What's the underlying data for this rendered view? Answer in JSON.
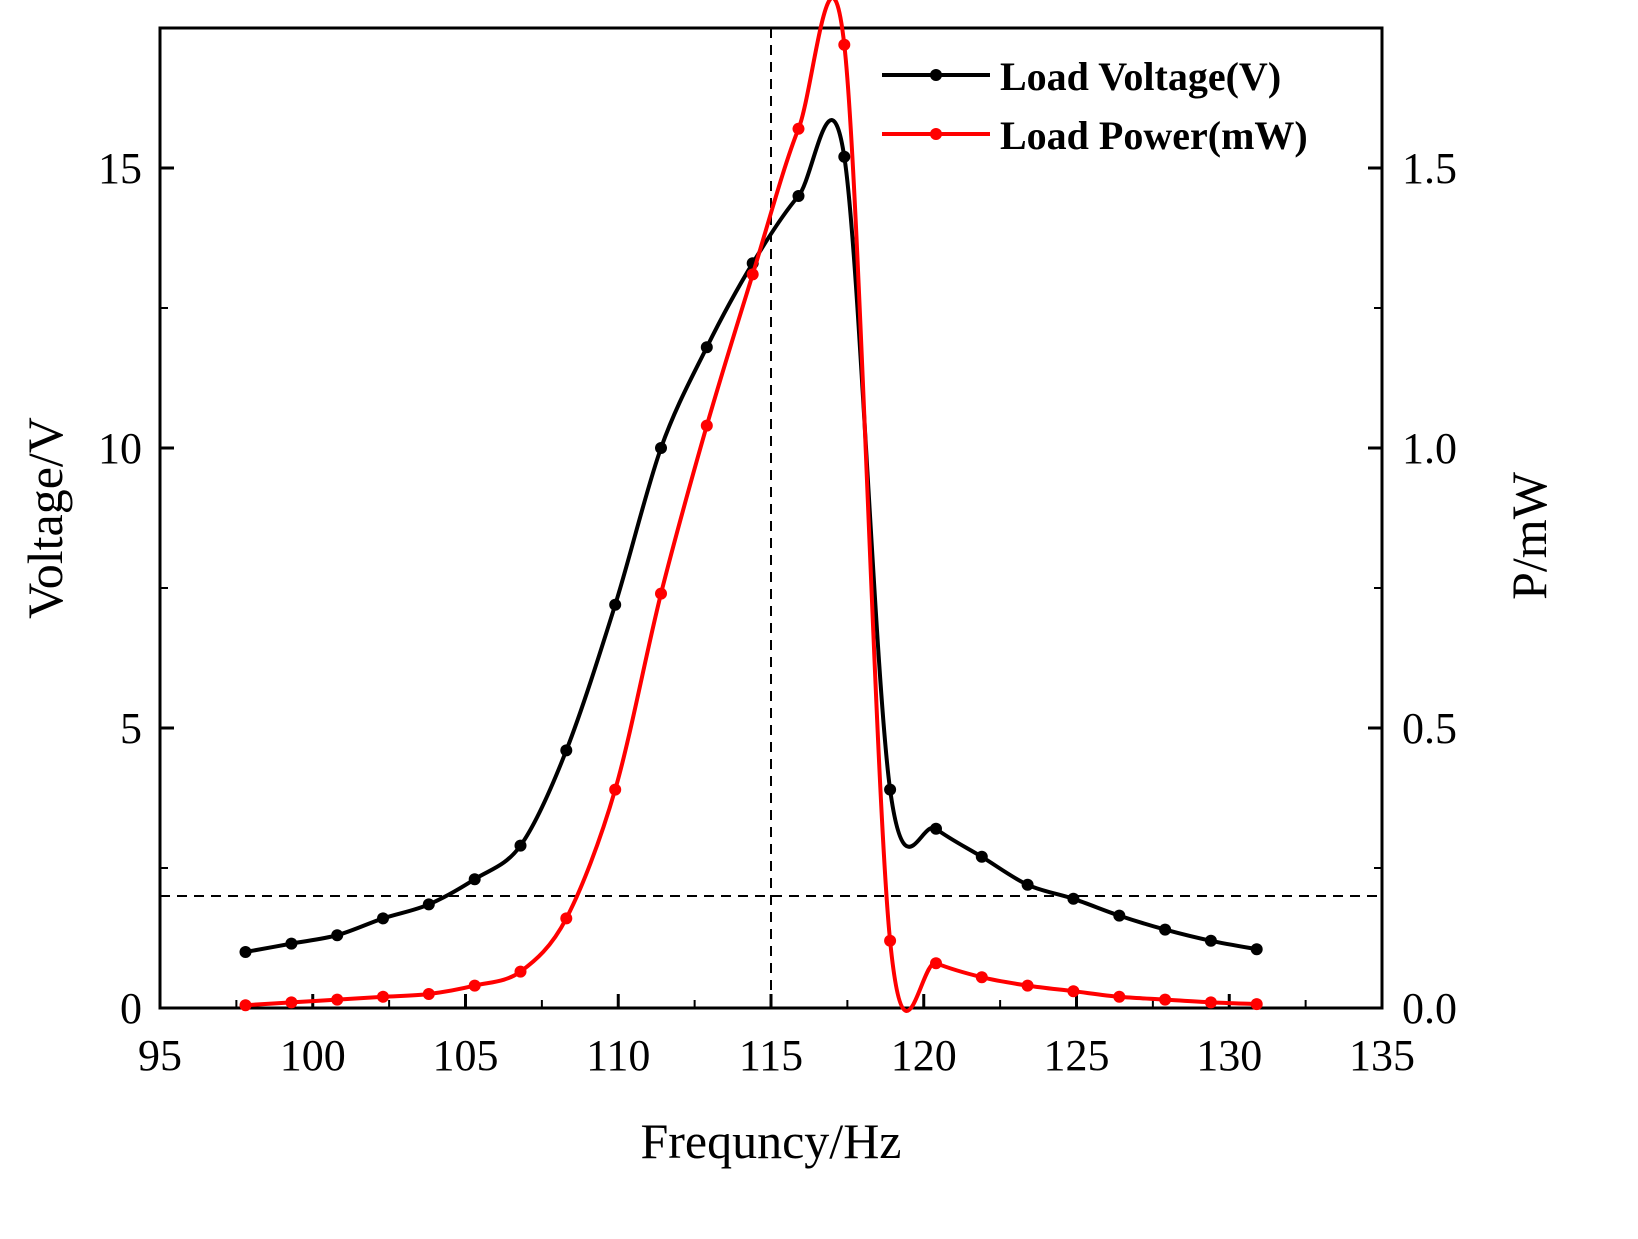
{
  "chart_data": {
    "type": "line",
    "xlabel": "Frequncy/Hz",
    "ylabel": "Voltage/V",
    "y2label": "P/mW",
    "xlim": [
      95,
      135
    ],
    "ylim": [
      0,
      17.5
    ],
    "y2lim": [
      0,
      1.75
    ],
    "xticks": [
      95,
      100,
      105,
      110,
      115,
      120,
      125,
      130,
      135
    ],
    "yticks": [
      0,
      5,
      10,
      15
    ],
    "y2ticks": [
      "0.0",
      "0.5",
      "1.0",
      "1.5"
    ],
    "reference_lines": {
      "vertical_x": 115,
      "horizontal_y": 2.0
    },
    "legend_position": "top-right",
    "series": [
      {
        "name": "Load Voltage(V)",
        "axis": "left",
        "color": "#000000",
        "x": [
          97.8,
          99.3,
          100.8,
          102.3,
          103.8,
          105.3,
          106.8,
          108.3,
          109.9,
          111.4,
          112.9,
          114.4,
          115.9,
          117.4,
          118.9,
          120.4,
          121.9,
          123.4,
          124.9,
          126.4,
          127.9,
          129.4,
          130.9
        ],
        "values": [
          1.0,
          1.15,
          1.3,
          1.6,
          1.85,
          2.3,
          2.9,
          4.6,
          7.2,
          10.0,
          11.8,
          13.3,
          14.5,
          15.2,
          3.9,
          3.2,
          2.7,
          2.2,
          1.95,
          1.65,
          1.4,
          1.2,
          1.05
        ]
      },
      {
        "name": "Load Power(mW)",
        "axis": "right",
        "color": "#ff0000",
        "x": [
          97.8,
          99.3,
          100.8,
          102.3,
          103.8,
          105.3,
          106.8,
          108.3,
          109.9,
          111.4,
          112.9,
          114.4,
          115.9,
          117.4,
          118.9,
          120.4,
          121.9,
          123.4,
          124.9,
          126.4,
          127.9,
          129.4,
          130.9
        ],
        "values": [
          0.005,
          0.01,
          0.015,
          0.02,
          0.025,
          0.04,
          0.065,
          0.16,
          0.39,
          0.74,
          1.04,
          1.31,
          1.57,
          1.72,
          0.12,
          0.08,
          0.055,
          0.04,
          0.03,
          0.02,
          0.015,
          0.01,
          0.007
        ]
      }
    ]
  }
}
